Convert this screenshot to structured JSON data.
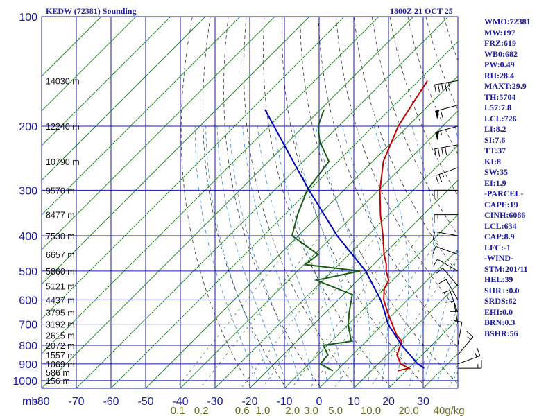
{
  "header": {
    "title": "KEDW (72381) Sounding",
    "time": "1800Z 21 OCT 25"
  },
  "indices": [
    "WMO:72381",
    "MW:197",
    "FRZ:619",
    "WB0:682",
    "PW:0.49",
    "RH:28.4",
    "MAXT:29.9",
    "TH:5704",
    "L57:7.8",
    "LCL:726",
    "LI:8.2",
    "SI:7.6",
    "TT:37",
    "KI:8",
    "SW:35",
    "EI:1.9",
    "-PARCEL-",
    "CAPE:19",
    "CINH:6086",
    "LCL:634",
    "CAP:8.9",
    "LFC:-1",
    "-WIND-",
    "STM:201/11",
    "HEL:39",
    "SHR+:0.0",
    "SRDS:62",
    "EHI:0.0",
    "BRN:0.3",
    "BSHR:56"
  ],
  "chart_data": {
    "type": "line",
    "diagram": "skew-T log-P",
    "pressure_unit": "mb",
    "temperature_axis": {
      "ticks": [
        -80,
        -70,
        -60,
        -50,
        -40,
        -30,
        -20,
        -10,
        0,
        10,
        20,
        30
      ],
      "labels": [
        "-80",
        "-70",
        "-60",
        "-50",
        "-40",
        "-30",
        "-20",
        "-10",
        "0",
        "10",
        "20",
        "30"
      ],
      "range": [
        -80,
        38
      ]
    },
    "pressure_axis": {
      "scale": "log",
      "ticks": [
        100,
        200,
        300,
        400,
        500,
        600,
        700,
        800,
        900,
        1000
      ],
      "labels": [
        "100",
        "200",
        "300",
        "400",
        "500",
        "600",
        "700",
        "800",
        "900",
        "1000"
      ],
      "range": [
        100,
        1050
      ]
    },
    "mixing_ratio_labels": [
      "0.1",
      "0.2",
      "0.6",
      "1.0",
      "2.0",
      "3.0",
      "5.0",
      "10.0",
      "20.0",
      "40g/kg"
    ],
    "mixing_ratio_values": [
      0.1,
      0.2,
      0.6,
      1.0,
      2.0,
      3.0,
      5.0,
      10.0,
      20.0,
      40.0
    ],
    "height_labels": [
      {
        "p": 150,
        "text": "14030 m"
      },
      {
        "p": 200,
        "text": "12240 m"
      },
      {
        "p": 250,
        "text": "10790 m"
      },
      {
        "p": 300,
        "text": "9570 m"
      },
      {
        "p": 350,
        "text": "8477 m"
      },
      {
        "p": 400,
        "text": "7530 m"
      },
      {
        "p": 450,
        "text": "6657 m"
      },
      {
        "p": 500,
        "text": "5860 m"
      },
      {
        "p": 550,
        "text": "5121 m"
      },
      {
        "p": 600,
        "text": "4437 m"
      },
      {
        "p": 650,
        "text": "3795 m"
      },
      {
        "p": 700,
        "text": "3192 m"
      },
      {
        "p": 750,
        "text": "2615 m"
      },
      {
        "p": 800,
        "text": "2072 m"
      },
      {
        "p": 850,
        "text": "1557 m"
      },
      {
        "p": 900,
        "text": "1069 m"
      },
      {
        "p": 950,
        "text": "586 m"
      },
      {
        "p": 1000,
        "text": "156 m"
      }
    ],
    "series": [
      {
        "key": "temperature",
        "color": "#c40000",
        "points": [
          [
            150,
            -57.5
          ],
          [
            200,
            -52.8
          ],
          [
            250,
            -46.9
          ],
          [
            300,
            -39.6
          ],
          [
            350,
            -32.4
          ],
          [
            400,
            -25.6
          ],
          [
            450,
            -19.9
          ],
          [
            480,
            -16.3
          ],
          [
            500,
            -14.5
          ],
          [
            530,
            -11.1
          ],
          [
            560,
            -9.9
          ],
          [
            600,
            -6.9
          ],
          [
            650,
            -2.1
          ],
          [
            700,
            2.6
          ],
          [
            750,
            7.0
          ],
          [
            780,
            10.3
          ],
          [
            800,
            11.0
          ],
          [
            850,
            12.8
          ],
          [
            900,
            16.5
          ],
          [
            925,
            20.1
          ],
          [
            940,
            17.6
          ]
        ]
      },
      {
        "key": "dewpoint",
        "color": "#1a5c1a",
        "points": [
          [
            180,
            -79.0
          ],
          [
            200,
            -75.9
          ],
          [
            220,
            -71.1
          ],
          [
            250,
            -62.6
          ],
          [
            300,
            -60.6
          ],
          [
            350,
            -56.3
          ],
          [
            400,
            -51.8
          ],
          [
            450,
            -38.9
          ],
          [
            480,
            -39.6
          ],
          [
            500,
            -22.0
          ],
          [
            530,
            -32.0
          ],
          [
            580,
            -17.5
          ],
          [
            650,
            -13.2
          ],
          [
            700,
            -10.1
          ],
          [
            780,
            -4.3
          ],
          [
            800,
            -11.2
          ],
          [
            850,
            -7.1
          ],
          [
            900,
            -6.7
          ],
          [
            940,
            -1.1
          ]
        ]
      },
      {
        "key": "parcel",
        "color": "#0000b4",
        "points": [
          [
            180,
            -96.0
          ],
          [
            250,
            -72.9
          ],
          [
            300,
            -60.0
          ],
          [
            400,
            -38.8
          ],
          [
            500,
            -20.4
          ],
          [
            600,
            -7.8
          ],
          [
            634,
            -4.4
          ],
          [
            700,
            1.4
          ],
          [
            800,
            11.4
          ],
          [
            900,
            21.4
          ],
          [
            925,
            24.5
          ]
        ]
      }
    ],
    "wind_barbs": [
      {
        "p": 150,
        "dir": 260,
        "spd": 45
      },
      {
        "p": 175,
        "dir": 255,
        "spd": 60
      },
      {
        "p": 200,
        "dir": 255,
        "spd": 55
      },
      {
        "p": 225,
        "dir": 260,
        "spd": 40
      },
      {
        "p": 260,
        "dir": 250,
        "spd": 25
      },
      {
        "p": 300,
        "dir": 270,
        "spd": 20
      },
      {
        "p": 350,
        "dir": 270,
        "spd": 15
      },
      {
        "p": 400,
        "dir": 280,
        "spd": 15
      },
      {
        "p": 450,
        "dir": 290,
        "spd": 10
      },
      {
        "p": 500,
        "dir": 300,
        "spd": 10
      },
      {
        "p": 550,
        "dir": 320,
        "spd": 10
      },
      {
        "p": 600,
        "dir": 330,
        "spd": 10
      },
      {
        "p": 650,
        "dir": 340,
        "spd": 10
      },
      {
        "p": 700,
        "dir": 350,
        "spd": 10
      },
      {
        "p": 750,
        "dir": 0,
        "spd": 10
      },
      {
        "p": 800,
        "dir": 10,
        "spd": 10
      },
      {
        "p": 850,
        "dir": 40,
        "spd": 15
      },
      {
        "p": 900,
        "dir": 70,
        "spd": 15
      },
      {
        "p": 925,
        "dir": 90,
        "spd": 15
      }
    ]
  }
}
